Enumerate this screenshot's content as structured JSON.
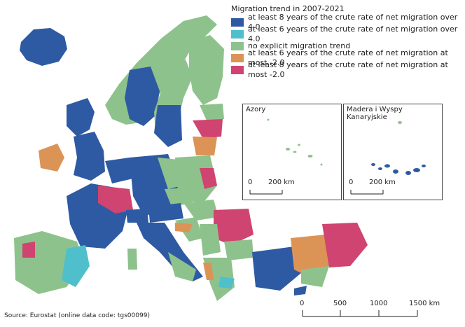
{
  "legend": {
    "title": "Migration trend in 2007-2021",
    "items": [
      {
        "label": "at least 8 years of the crute rate of net migration over 4.0",
        "color": "#2e5aa3"
      },
      {
        "label": "at least 6 years of the crute rate of net migration over 4.0",
        "color": "#4fc0cb"
      },
      {
        "label": "no explicit migration trend",
        "color": "#8ec28c"
      },
      {
        "label": "at least 6 years of the crute rate of net migration at most -2.0",
        "color": "#dc9456"
      },
      {
        "label": "at least 8 years of the crute rate of net migration at most -2.0",
        "color": "#cf4470"
      }
    ]
  },
  "insets": [
    {
      "title": "Azory",
      "scale_zero": "0",
      "scale_label": "200 km"
    },
    {
      "title": "Madera i Wyspy Kanaryjskie",
      "scale_zero": "0",
      "scale_label": "200 km"
    }
  ],
  "scalebar": {
    "labels": [
      "0",
      "500",
      "1000",
      "1500 km"
    ]
  },
  "source": "Source: Eurostat (online data code: tgs00099)"
}
